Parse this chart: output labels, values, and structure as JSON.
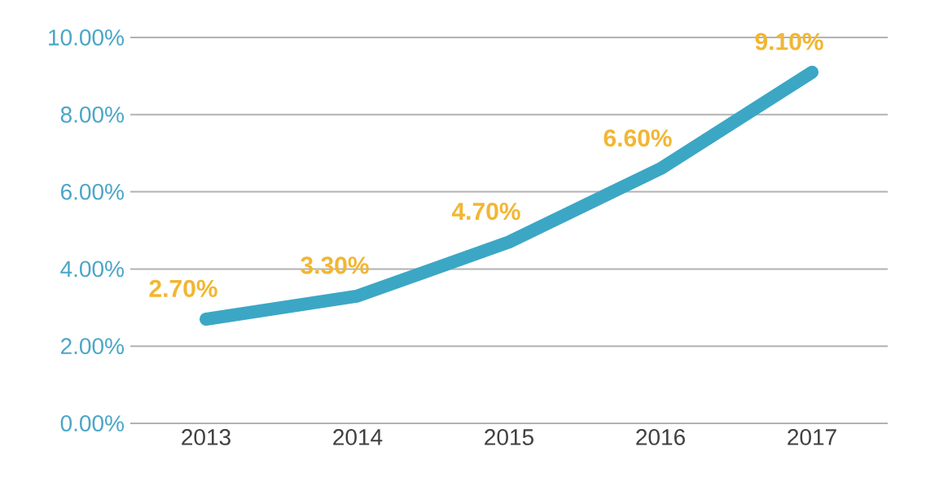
{
  "chart_data": {
    "type": "line",
    "categories": [
      "2013",
      "2014",
      "2015",
      "2016",
      "2017"
    ],
    "values": [
      2.7,
      3.3,
      4.7,
      6.6,
      9.1
    ],
    "color": "#3ba7c5",
    "value_labels": [
      "2.70%",
      "3.30%",
      "4.70%",
      "6.60%",
      "9.10%"
    ],
    "ylim": [
      0,
      10
    ],
    "yticks": [
      {
        "value": 0,
        "label": "0.00%"
      },
      {
        "value": 2,
        "label": "2.00%"
      },
      {
        "value": 4,
        "label": "4.00%"
      },
      {
        "value": 6,
        "label": "6.00%"
      },
      {
        "value": 8,
        "label": "8.00%"
      },
      {
        "value": 10,
        "label": "10.00%"
      }
    ],
    "grid": "y"
  }
}
